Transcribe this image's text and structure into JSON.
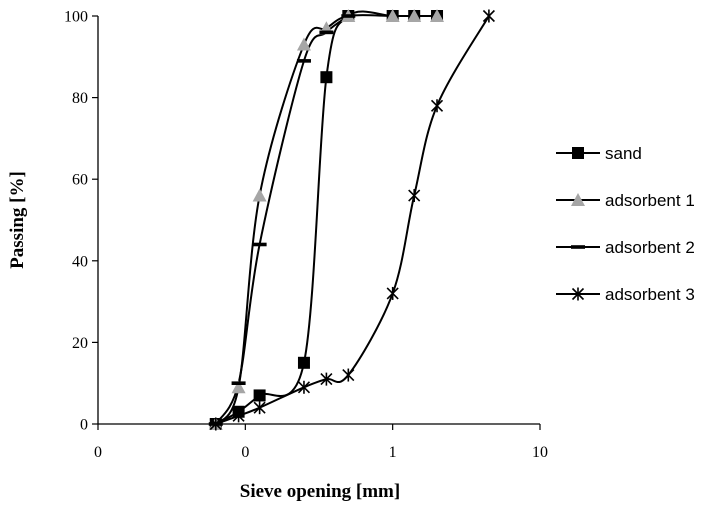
{
  "chart_data": {
    "type": "line",
    "xlabel": "Sieve opening [mm]",
    "ylabel": "Passing [%]",
    "x_scale": "log",
    "xlim": [
      0.01,
      10
    ],
    "ylim": [
      0,
      100
    ],
    "x_tick_labels": [
      "0",
      "0",
      "1",
      "10"
    ],
    "y_tick_labels": [
      "0",
      "20",
      "40",
      "60",
      "80",
      "100"
    ],
    "legend_position": "right",
    "grid": false,
    "series": [
      {
        "name": "sand",
        "marker": "square",
        "color": "#000000",
        "x": [
          0.063,
          0.09,
          0.125,
          0.25,
          0.355,
          0.5,
          1,
          1.4,
          2
        ],
        "y": [
          0,
          3,
          7,
          15,
          85,
          100,
          100,
          100,
          100
        ]
      },
      {
        "name": "adsorbent 1",
        "marker": "triangle",
        "color": "#a6a6a6",
        "x": [
          0.063,
          0.09,
          0.125,
          0.25,
          0.355,
          0.5,
          1,
          1.4,
          2
        ],
        "y": [
          0,
          9,
          56,
          93,
          97,
          100,
          100,
          100,
          100
        ]
      },
      {
        "name": "adsorbent 2",
        "marker": "dash",
        "color": "#000000",
        "x": [
          0.063,
          0.09,
          0.125,
          0.25,
          0.355,
          0.5
        ],
        "y": [
          0,
          10,
          44,
          89,
          96,
          100
        ]
      },
      {
        "name": "adsorbent 3",
        "marker": "star",
        "color": "#000000",
        "x": [
          0.063,
          0.09,
          0.125,
          0.25,
          0.355,
          0.5,
          1,
          1.4,
          2,
          4.5
        ],
        "y": [
          0,
          2,
          4,
          9,
          11,
          12,
          32,
          56,
          78,
          100
        ]
      }
    ]
  }
}
